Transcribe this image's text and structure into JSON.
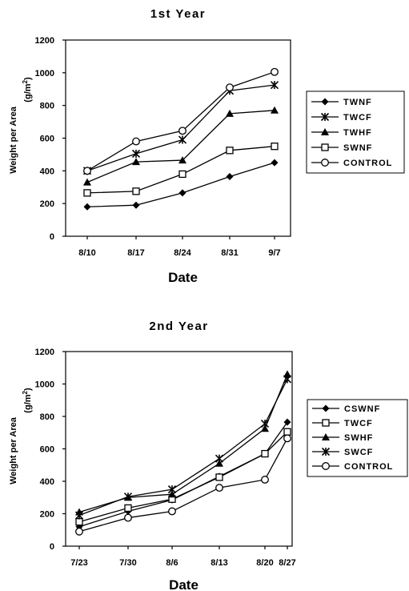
{
  "chart_data": [
    {
      "type": "line",
      "title": "1st Year",
      "xlabel": "Date",
      "ylabel": "Weight per Area",
      "yunit_base": "(g/m",
      "yunit_exp": "2",
      "yunit_close": ")",
      "ylim": [
        0,
        1200
      ],
      "yticks": [
        "0",
        "200",
        "400",
        "600",
        "800",
        "1000",
        "1200"
      ],
      "categories": [
        "8/10",
        "8/17",
        "8/24",
        "8/31",
        "9/7"
      ],
      "legend_position": "right",
      "series": [
        {
          "name": "TWNF",
          "marker": "diamond",
          "values": [
            180,
            190,
            265,
            365,
            450
          ]
        },
        {
          "name": "TWCF",
          "marker": "asterisk",
          "values": [
            400,
            505,
            590,
            890,
            925
          ]
        },
        {
          "name": "TWHF",
          "marker": "triangle",
          "values": [
            330,
            455,
            465,
            750,
            770
          ]
        },
        {
          "name": "SWNF",
          "marker": "square",
          "values": [
            265,
            275,
            380,
            525,
            550
          ]
        },
        {
          "name": "CONTROL",
          "marker": "circle",
          "values": [
            400,
            580,
            645,
            910,
            1005
          ]
        }
      ]
    },
    {
      "type": "line",
      "title": "2nd Year",
      "xlabel": "Date",
      "ylabel": "Weight per Area",
      "yunit_base": "(g/m",
      "yunit_exp": "2",
      "yunit_close": ")",
      "ylim": [
        0,
        1200
      ],
      "yticks": [
        "0",
        "200",
        "400",
        "600",
        "800",
        "1000",
        "1200"
      ],
      "categories": [
        "7/23",
        "7/30",
        "8/6",
        "8/13",
        "8/20",
        "8/27"
      ],
      "legend_position": "right",
      "series": [
        {
          "name": "CSWNF",
          "marker": "diamond",
          "values": [
            120,
            215,
            285,
            430,
            570,
            765
          ]
        },
        {
          "name": "TWCF",
          "marker": "square",
          "values": [
            150,
            235,
            290,
            425,
            570,
            705
          ]
        },
        {
          "name": "SWHF",
          "marker": "triangle",
          "values": [
            210,
            300,
            320,
            510,
            725,
            1060
          ]
        },
        {
          "name": "SWCF",
          "marker": "asterisk",
          "values": [
            190,
            305,
            350,
            540,
            755,
            1030
          ]
        },
        {
          "name": "CONTROL",
          "marker": "circle",
          "values": [
            90,
            175,
            215,
            360,
            410,
            665
          ]
        }
      ]
    }
  ]
}
